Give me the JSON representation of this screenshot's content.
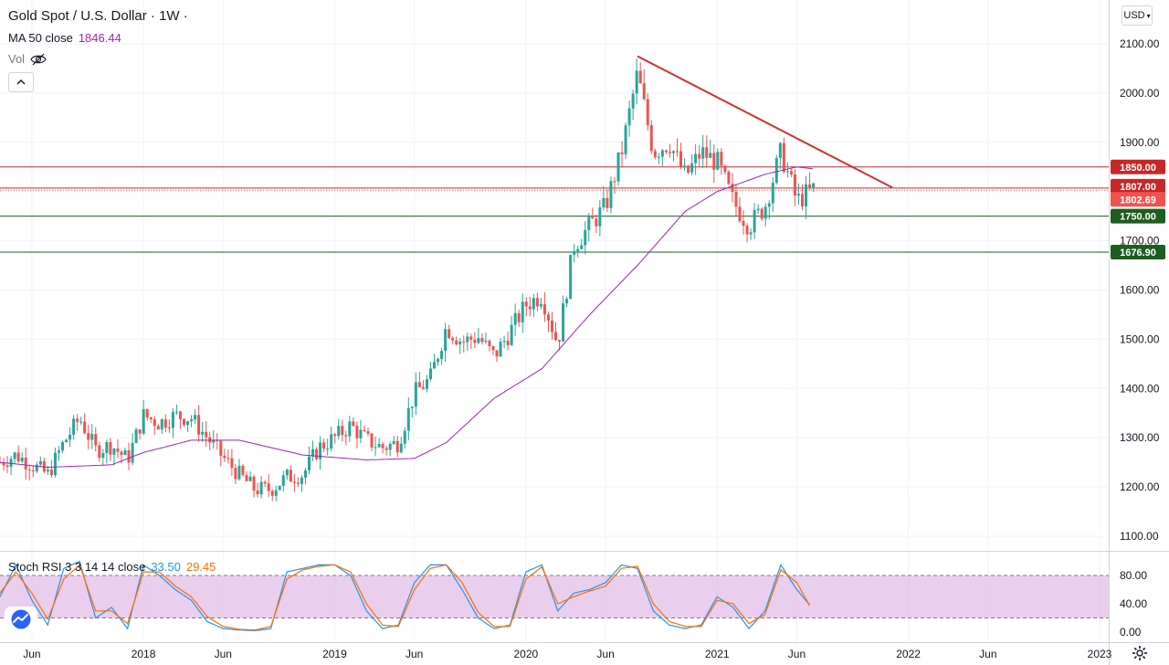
{
  "header": {
    "symbol": "Gold Spot / U.S. Dollar",
    "separator": "/",
    "interval": "1W",
    "ma_label": "MA 50 close",
    "ma_value": "1846.44",
    "vol_label": "Vol",
    "currency": "USD"
  },
  "indicator": {
    "label": "Stoch RSI 3 3 14 14 close",
    "k_value": "33.50",
    "d_value": "29.45"
  },
  "colors": {
    "up": "#26a69a",
    "down": "#ef5350",
    "ma": "#9c27b0",
    "trendline": "#d32f2f",
    "resistance": "#c62828",
    "support": "#1b5e20",
    "k": "#2196f3",
    "d": "#ff6d00",
    "band": "#e1bee7"
  },
  "chart_data": [
    {
      "type": "candlestick",
      "title": "Gold Spot / U.S. Dollar · 1W",
      "xlabel": "",
      "ylabel": "",
      "x_range": [
        "2017-04",
        "2023-01"
      ],
      "ylim": [
        1050,
        2150
      ],
      "y_ticks": [
        1100,
        1200,
        1300,
        1400,
        1500,
        1600,
        1700,
        1800,
        1900,
        2000,
        2100
      ],
      "x_ticks": [
        {
          "label": "Jun",
          "date": "2017-06"
        },
        {
          "label": "2018",
          "date": "2018-01"
        },
        {
          "label": "Jun",
          "date": "2018-06"
        },
        {
          "label": "2019",
          "date": "2019-01"
        },
        {
          "label": "Jun",
          "date": "2019-06"
        },
        {
          "label": "2020",
          "date": "2020-01"
        },
        {
          "label": "Jun",
          "date": "2020-06"
        },
        {
          "label": "2021",
          "date": "2021-01"
        },
        {
          "label": "Jun",
          "date": "2021-06"
        },
        {
          "label": "2022",
          "date": "2022-01"
        },
        {
          "label": "Jun",
          "date": "2022-06"
        },
        {
          "label": "2023",
          "date": "2023-01"
        }
      ],
      "close_keypoints": [
        [
          "2017-04",
          1250
        ],
        [
          "2017-05",
          1265
        ],
        [
          "2017-06",
          1245
        ],
        [
          "2017-07",
          1225
        ],
        [
          "2017-08",
          1290
        ],
        [
          "2017-09",
          1340
        ],
        [
          "2017-10",
          1275
        ],
        [
          "2017-11",
          1285
        ],
        [
          "2017-12",
          1255
        ],
        [
          "2018-01",
          1345
        ],
        [
          "2018-02",
          1330
        ],
        [
          "2018-03",
          1345
        ],
        [
          "2018-04",
          1340
        ],
        [
          "2018-05",
          1300
        ],
        [
          "2018-06",
          1260
        ],
        [
          "2018-07",
          1225
        ],
        [
          "2018-08",
          1195
        ],
        [
          "2018-09",
          1195
        ],
        [
          "2018-10",
          1220
        ],
        [
          "2018-11",
          1225
        ],
        [
          "2018-12",
          1280
        ],
        [
          "2019-01",
          1300
        ],
        [
          "2019-02",
          1325
        ],
        [
          "2019-03",
          1295
        ],
        [
          "2019-04",
          1280
        ],
        [
          "2019-05",
          1290
        ],
        [
          "2019-06",
          1390
        ],
        [
          "2019-07",
          1420
        ],
        [
          "2019-08",
          1525
        ],
        [
          "2019-09",
          1495
        ],
        [
          "2019-10",
          1505
        ],
        [
          "2019-11",
          1465
        ],
        [
          "2019-12",
          1515
        ],
        [
          "2020-01",
          1570
        ],
        [
          "2020-02",
          1590
        ],
        [
          "2020-03",
          1490
        ],
        [
          "2020-04",
          1690
        ],
        [
          "2020-05",
          1730
        ],
        [
          "2020-06",
          1770
        ],
        [
          "2020-07",
          1880
        ],
        [
          "2020-08",
          2040
        ],
        [
          "2020-09",
          1880
        ],
        [
          "2020-10",
          1900
        ],
        [
          "2020-11",
          1830
        ],
        [
          "2020-12",
          1880
        ],
        [
          "2021-01",
          1860
        ],
        [
          "2021-02",
          1780
        ],
        [
          "2021-03",
          1730
        ],
        [
          "2021-04",
          1770
        ],
        [
          "2021-05",
          1880
        ],
        [
          "2021-06",
          1780
        ],
        [
          "2021-07",
          1805
        ]
      ],
      "ma50_keypoints": [
        [
          "2017-04",
          1250
        ],
        [
          "2017-07",
          1240
        ],
        [
          "2017-11",
          1245
        ],
        [
          "2018-01",
          1270
        ],
        [
          "2018-04",
          1295
        ],
        [
          "2018-07",
          1295
        ],
        [
          "2018-11",
          1265
        ],
        [
          "2019-03",
          1255
        ],
        [
          "2019-06",
          1258
        ],
        [
          "2019-08",
          1290
        ],
        [
          "2019-11",
          1380
        ],
        [
          "2020-02",
          1440
        ],
        [
          "2020-05",
          1550
        ],
        [
          "2020-08",
          1650
        ],
        [
          "2020-11",
          1760
        ],
        [
          "2021-01",
          1800
        ],
        [
          "2021-04",
          1835
        ],
        [
          "2021-06",
          1850
        ],
        [
          "2021-07",
          1846.44
        ]
      ],
      "horizontal_levels": [
        {
          "value": 1850.0,
          "label": "1850.00",
          "style": "resistance"
        },
        {
          "value": 1807.0,
          "label": "1807.00",
          "style": "resistance"
        },
        {
          "value": 1802.69,
          "label": "1802.69",
          "style": "last-price"
        },
        {
          "value": 1750.0,
          "label": "1750.00",
          "style": "support"
        },
        {
          "value": 1676.9,
          "label": "1676.90",
          "style": "support"
        }
      ],
      "trendline": {
        "from": [
          "2020-08",
          2075
        ],
        "to": [
          "2021-12",
          1808
        ]
      }
    },
    {
      "type": "line",
      "title": "Stoch RSI 3 3 14 14 close",
      "ylim": [
        -5,
        100
      ],
      "y_ticks": [
        0,
        40,
        80
      ],
      "bands": [
        20,
        80
      ],
      "series": [
        {
          "name": "K",
          "keypoints": [
            [
              "2017-04",
              50
            ],
            [
              "2017-05",
              95
            ],
            [
              "2017-06",
              45
            ],
            [
              "2017-07",
              10
            ],
            [
              "2017-08",
              90
            ],
            [
              "2017-09",
              100
            ],
            [
              "2017-10",
              20
            ],
            [
              "2017-11",
              35
            ],
            [
              "2017-12",
              5
            ],
            [
              "2018-01",
              95
            ],
            [
              "2018-02",
              80
            ],
            [
              "2018-03",
              60
            ],
            [
              "2018-04",
              45
            ],
            [
              "2018-05",
              15
            ],
            [
              "2018-06",
              5
            ],
            [
              "2018-07",
              3
            ],
            [
              "2018-08",
              2
            ],
            [
              "2018-09",
              5
            ],
            [
              "2018-10",
              85
            ],
            [
              "2018-11",
              90
            ],
            [
              "2018-12",
              95
            ],
            [
              "2019-01",
              95
            ],
            [
              "2019-02",
              80
            ],
            [
              "2019-03",
              30
            ],
            [
              "2019-04",
              5
            ],
            [
              "2019-05",
              10
            ],
            [
              "2019-06",
              70
            ],
            [
              "2019-07",
              95
            ],
            [
              "2019-08",
              95
            ],
            [
              "2019-09",
              60
            ],
            [
              "2019-10",
              20
            ],
            [
              "2019-11",
              5
            ],
            [
              "2019-12",
              10
            ],
            [
              "2020-01",
              85
            ],
            [
              "2020-02",
              95
            ],
            [
              "2020-03",
              30
            ],
            [
              "2020-04",
              55
            ],
            [
              "2020-05",
              60
            ],
            [
              "2020-06",
              70
            ],
            [
              "2020-07",
              95
            ],
            [
              "2020-08",
              90
            ],
            [
              "2020-09",
              30
            ],
            [
              "2020-10",
              10
            ],
            [
              "2020-11",
              5
            ],
            [
              "2020-12",
              10
            ],
            [
              "2021-01",
              50
            ],
            [
              "2021-02",
              35
            ],
            [
              "2021-03",
              5
            ],
            [
              "2021-04",
              30
            ],
            [
              "2021-05",
              95
            ],
            [
              "2021-06",
              60
            ],
            [
              "2021-07",
              33.5
            ]
          ]
        },
        {
          "name": "D",
          "keypoints": [
            [
              "2017-04",
              55
            ],
            [
              "2017-05",
              85
            ],
            [
              "2017-06",
              55
            ],
            [
              "2017-07",
              18
            ],
            [
              "2017-08",
              75
            ],
            [
              "2017-09",
              95
            ],
            [
              "2017-10",
              30
            ],
            [
              "2017-11",
              30
            ],
            [
              "2017-12",
              12
            ],
            [
              "2018-01",
              85
            ],
            [
              "2018-02",
              85
            ],
            [
              "2018-03",
              65
            ],
            [
              "2018-04",
              50
            ],
            [
              "2018-05",
              22
            ],
            [
              "2018-06",
              8
            ],
            [
              "2018-07",
              4
            ],
            [
              "2018-08",
              3
            ],
            [
              "2018-09",
              8
            ],
            [
              "2018-10",
              75
            ],
            [
              "2018-11",
              88
            ],
            [
              "2018-12",
              93
            ],
            [
              "2019-01",
              95
            ],
            [
              "2019-02",
              85
            ],
            [
              "2019-03",
              40
            ],
            [
              "2019-04",
              10
            ],
            [
              "2019-05",
              8
            ],
            [
              "2019-06",
              60
            ],
            [
              "2019-07",
              90
            ],
            [
              "2019-08",
              95
            ],
            [
              "2019-09",
              70
            ],
            [
              "2019-10",
              28
            ],
            [
              "2019-11",
              8
            ],
            [
              "2019-12",
              8
            ],
            [
              "2020-01",
              75
            ],
            [
              "2020-02",
              92
            ],
            [
              "2020-03",
              40
            ],
            [
              "2020-04",
              50
            ],
            [
              "2020-05",
              58
            ],
            [
              "2020-06",
              65
            ],
            [
              "2020-07",
              90
            ],
            [
              "2020-08",
              93
            ],
            [
              "2020-09",
              40
            ],
            [
              "2020-10",
              15
            ],
            [
              "2020-11",
              8
            ],
            [
              "2020-12",
              8
            ],
            [
              "2021-01",
              45
            ],
            [
              "2021-02",
              40
            ],
            [
              "2021-03",
              12
            ],
            [
              "2021-04",
              25
            ],
            [
              "2021-05",
              88
            ],
            [
              "2021-06",
              70
            ],
            [
              "2021-07",
              29.45
            ]
          ]
        }
      ]
    }
  ]
}
